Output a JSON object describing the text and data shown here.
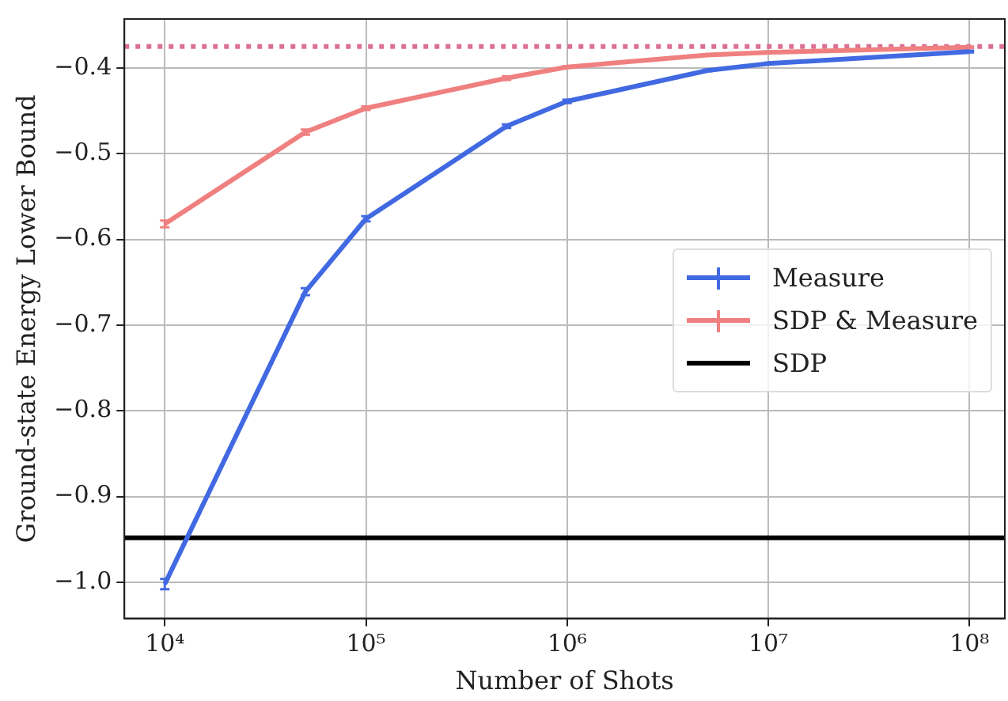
{
  "chart_data": {
    "type": "line",
    "xlabel": "Number of Shots",
    "ylabel": "Ground-state Energy Lower Bound",
    "log": "x",
    "grid": true,
    "legend": "center right",
    "marker": "none",
    "line_style": "solid",
    "xlim": [
      6300,
      150000000
    ],
    "xticks": [
      {
        "value": 10000,
        "label": "10⁴"
      },
      {
        "value": 100000,
        "label": "10⁵"
      },
      {
        "value": 1000000,
        "label": "10⁶"
      },
      {
        "value": 10000000,
        "label": "10⁷"
      },
      {
        "value": 100000000,
        "label": "10⁸"
      }
    ],
    "ylim": [
      -1.042,
      -0.343
    ],
    "yticks": [
      {
        "value": -1,
        "label": "−1.0"
      },
      -0.9,
      -0.8,
      -0.7,
      -0.6,
      -0.5,
      -0.4
    ],
    "x": [
      10000,
      50000,
      100000,
      500000,
      1000000,
      5000000,
      10000000,
      100000000
    ],
    "series": [
      {
        "name": "Measure",
        "color": "#4169e1",
        "values": [
          -1.002,
          -0.661,
          -0.576,
          -0.468,
          -0.439,
          -0.403,
          -0.395,
          -0.381
        ],
        "errors": [
          0.006,
          0.004,
          0.003,
          0.002,
          0.002,
          0.001,
          0.001,
          0.001
        ]
      },
      {
        "name": "SDP & Measure",
        "color": "#f08080",
        "values": [
          -0.582,
          -0.475,
          -0.447,
          -0.412,
          -0.399,
          -0.385,
          -0.382,
          -0.376
        ],
        "errors": [
          0.004,
          0.003,
          0.002,
          0.002,
          0.001,
          0.001,
          0.001,
          0.001
        ]
      }
    ],
    "ref_lines": [
      {
        "axis": "y",
        "value": -0.948,
        "label": "SDP",
        "color": "#000000",
        "line_style": "solid"
      },
      {
        "axis": "y",
        "value": -0.375,
        "color": "#db7093",
        "line_style": "dotted"
      }
    ]
  }
}
